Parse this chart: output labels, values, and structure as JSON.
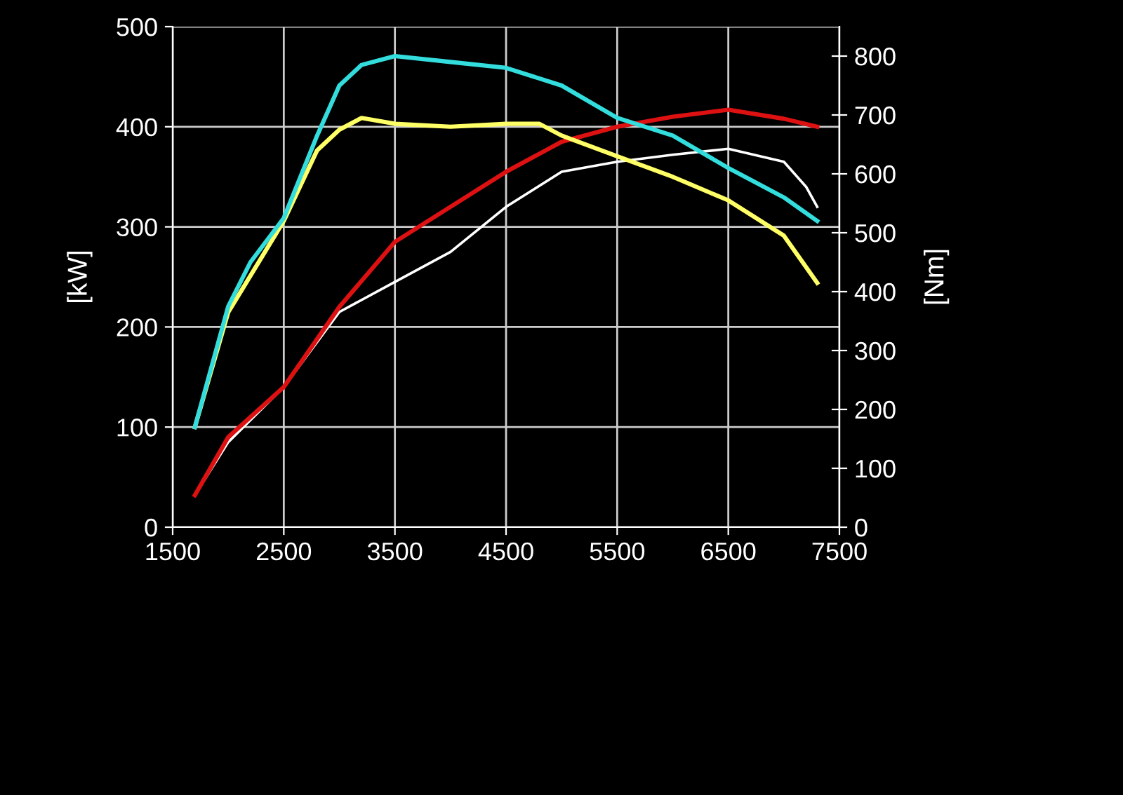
{
  "chart_data": {
    "type": "line",
    "ylabel": "[kW]",
    "y2label": "[Nm]",
    "xlim": [
      1500,
      7500
    ],
    "xticks": [
      1500,
      2500,
      3500,
      4500,
      5500,
      6500,
      7500
    ],
    "ylim": [
      0,
      500
    ],
    "yticks": [
      0,
      100,
      200,
      300,
      400,
      500
    ],
    "y2lim": [
      0,
      850
    ],
    "y2ticks": [
      0,
      100,
      200,
      300,
      400,
      500,
      600,
      700,
      800
    ],
    "grid": true,
    "legend": false,
    "marker": "none",
    "line_style": "solid",
    "series": [
      {
        "color": "#ffffff",
        "x": [
          1700,
          2000,
          2500,
          3000,
          3500,
          4000,
          4500,
          5000,
          5500,
          6000,
          6500,
          7000,
          7200,
          7300
        ],
        "values": [
          32,
          85,
          140,
          215,
          245,
          275,
          320,
          355,
          365,
          372,
          378,
          365,
          340,
          320
        ]
      },
      {
        "color": "#ffff66",
        "axis": "y2",
        "x": [
          1700,
          2000,
          2500,
          2800,
          3000,
          3200,
          3500,
          4000,
          4500,
          4800,
          5000,
          5500,
          6000,
          6500,
          7000,
          7300
        ],
        "values": [
          170,
          365,
          520,
          640,
          675,
          695,
          685,
          680,
          685,
          685,
          665,
          630,
          595,
          555,
          495,
          415
        ]
      },
      {
        "color": "#dd1111",
        "x": [
          1700,
          2000,
          2500,
          3000,
          3500,
          4000,
          4500,
          5000,
          5500,
          6000,
          6500,
          7000,
          7300
        ],
        "values": [
          32,
          90,
          140,
          220,
          285,
          320,
          355,
          385,
          400,
          410,
          417,
          408,
          400
        ]
      },
      {
        "color": "#33dddd",
        "axis": "y2",
        "x": [
          1700,
          2000,
          2200,
          2500,
          2800,
          3000,
          3200,
          3500,
          4000,
          4500,
          5000,
          5500,
          6000,
          6500,
          7000,
          7300
        ],
        "values": [
          170,
          375,
          450,
          525,
          665,
          750,
          785,
          800,
          790,
          780,
          750,
          695,
          665,
          610,
          560,
          520
        ]
      }
    ]
  }
}
